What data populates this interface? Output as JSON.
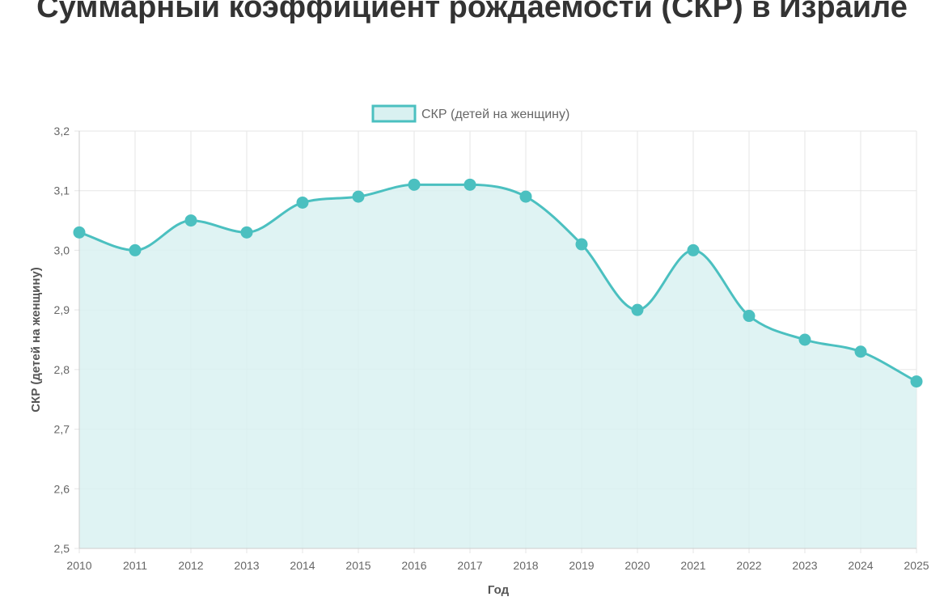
{
  "chart_data": {
    "type": "area",
    "title": "Суммарный коэффициент рождаемости (СКР) в Израиле",
    "xlabel": "Год",
    "ylabel": "СКР (детей на женщину)",
    "categories": [
      "2010",
      "2011",
      "2012",
      "2013",
      "2014",
      "2015",
      "2016",
      "2017",
      "2018",
      "2019",
      "2020",
      "2021",
      "2022",
      "2023",
      "2024",
      "2025"
    ],
    "series": [
      {
        "name": "СКР (детей на женщину)",
        "values": [
          3.03,
          3.0,
          3.05,
          3.03,
          3.08,
          3.09,
          3.11,
          3.11,
          3.09,
          3.01,
          2.9,
          3.0,
          2.89,
          2.85,
          2.83,
          2.78
        ]
      }
    ],
    "ylim": [
      2.5,
      3.2
    ],
    "yticks": [
      "2,5",
      "2,6",
      "2,7",
      "2,8",
      "2,9",
      "3,0",
      "3,1",
      "3,2"
    ],
    "ytick_values": [
      2.5,
      2.6,
      2.7,
      2.8,
      2.9,
      3.0,
      3.1,
      3.2
    ],
    "grid": true,
    "legend_position": "top",
    "colors": {
      "line": "#4bc0c0",
      "fill": "#d9f1f1",
      "grid": "#e5e5e5",
      "axis": "#cccccc",
      "title": "#333333"
    }
  }
}
